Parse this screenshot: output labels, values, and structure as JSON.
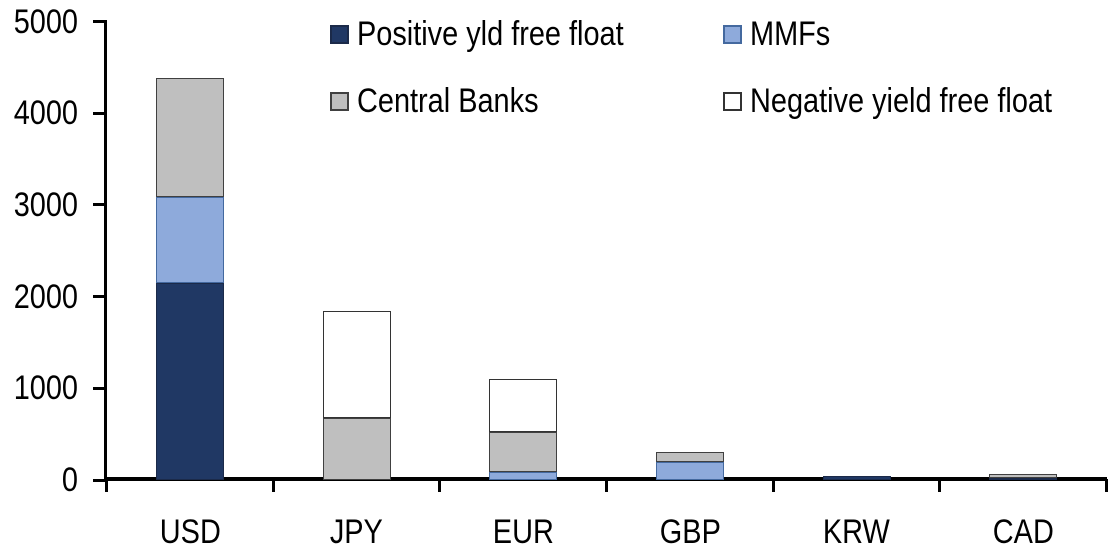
{
  "chart_data": {
    "type": "bar",
    "stacked": true,
    "title": "",
    "xlabel": "",
    "ylabel": "",
    "background": "#FFFFFF",
    "axis_color": "#000000",
    "text_color": "#000000",
    "grid": false,
    "legend_position": "top",
    "ylim": [
      0,
      5000
    ],
    "ytick_step": 1000,
    "yticks": [
      "0",
      "1000",
      "2000",
      "3000",
      "4000",
      "5000"
    ],
    "categories": [
      "USD",
      "JPY",
      "EUR",
      "GBP",
      "KRW",
      "CAD"
    ],
    "series": [
      {
        "name": "Positive yld free float",
        "color": "#203864",
        "border": "#1b2a49",
        "values": [
          2145,
          0,
          0,
          0,
          40,
          25
        ]
      },
      {
        "name": "MMFs",
        "color": "#8EAADB",
        "border": "#44699f",
        "values": [
          945,
          0,
          90,
          200,
          0,
          0
        ]
      },
      {
        "name": "Central Banks",
        "color": "#BFBFBF",
        "border": "#404040",
        "values": [
          1290,
          680,
          430,
          110,
          0,
          45
        ]
      },
      {
        "name": "Negative yield free float",
        "color": "#FFFFFF",
        "border": "#333333",
        "values": [
          0,
          1160,
          580,
          0,
          0,
          0
        ]
      }
    ]
  }
}
